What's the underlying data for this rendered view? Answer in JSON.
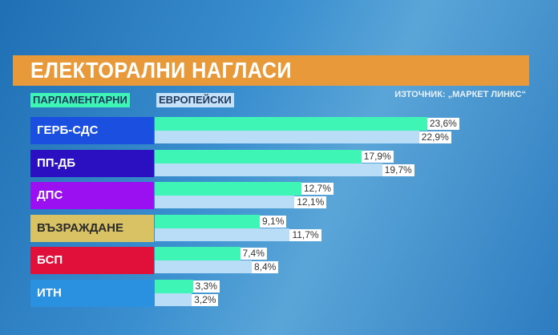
{
  "chart_data": {
    "type": "bar",
    "orientation": "horizontal",
    "title": "ЕЛЕКТОРАЛНИ НАГЛАСИ",
    "source": "ИЗТОЧНИК: „МАРКЕТ ЛИНКС“",
    "categories": [
      "ГЕРБ-СДС",
      "ПП-ДБ",
      "ДПС",
      "ВЪЗРАЖДАНЕ",
      "БСП",
      "ИТН"
    ],
    "category_colors": [
      "#1a4fe0",
      "#2a10c0",
      "#9a10f0",
      "#d9c264",
      "#e0103a",
      "#2a90e0"
    ],
    "series": [
      {
        "name": "ПАРЛАМЕНТАРНИ",
        "color": "#3ef5b5",
        "values": [
          23.6,
          17.9,
          12.7,
          9.1,
          7.4,
          3.3
        ],
        "labels": [
          "23,6%",
          "17,9%",
          "12,7%",
          "9,1%",
          "7,4%",
          "3,3%"
        ]
      },
      {
        "name": "ЕВРОПЕЙСКИ",
        "color": "#b9dcf7",
        "values": [
          22.9,
          19.7,
          12.1,
          11.7,
          8.4,
          3.2
        ],
        "labels": [
          "22,9%",
          "19,7%",
          "12,1%",
          "11,7%",
          "8,4%",
          "3,2%"
        ]
      }
    ],
    "unit": "%",
    "legend": "top-left",
    "grid": false
  }
}
